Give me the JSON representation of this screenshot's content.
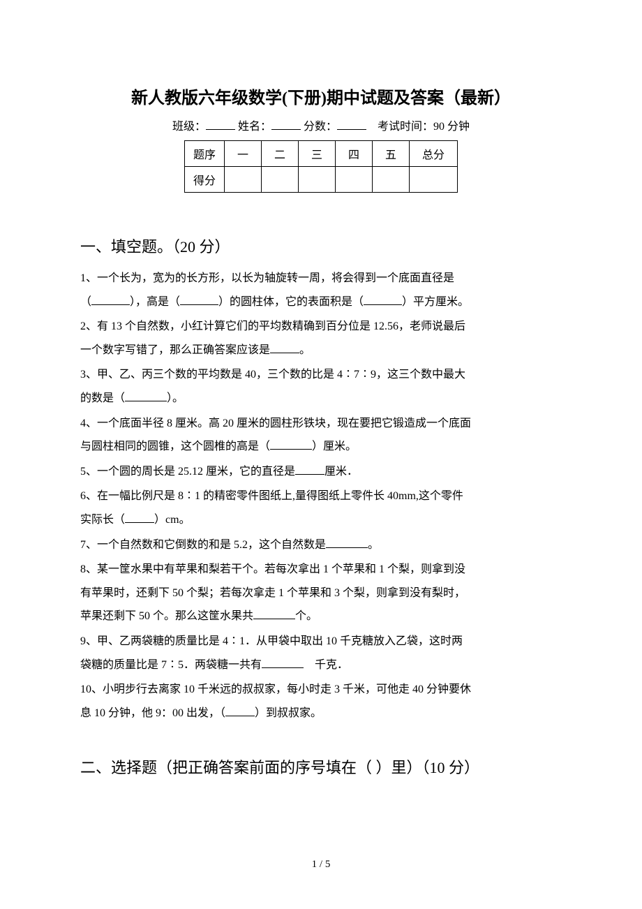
{
  "title": "新人教版六年级数学(下册)期中试题及答案（最新）",
  "meta": {
    "class_label": "班级：",
    "name_label": "姓名：",
    "score_label": "分数：",
    "exam_time_label": "考试时间：90 分钟"
  },
  "score_table": {
    "header": [
      "题序",
      "一",
      "二",
      "三",
      "四",
      "五",
      "总分"
    ],
    "row2_label": "得分"
  },
  "section1": {
    "heading": "一、填空题。（20 分）",
    "q1a": "1、一个长为，宽为的长方形，以长为轴旋转一周，将会得到一个底面直径是",
    "q1b": "（",
    "q1c": "），高是（",
    "q1d": "）的圆柱体，它的表面积是（",
    "q1e": "）平方厘米。",
    "q2a": "2、有 13 个自然数，小红计算它们的平均数精确到百分位是 12.56，老师说最后",
    "q2b": "一个数字写错了，那么正确答案应该是",
    "q2c": "。",
    "q3a": "3、甲、乙、丙三个数的平均数是 40，三个数的比是 4∶7∶9，这三个数中最大",
    "q3b": "的数是（",
    "q3c": "）。",
    "q4a": "4、一个底面半径 8 厘米。高 20 厘米的圆柱形铁块，现在要把它锻造成一个底面",
    "q4b": "与圆柱相同的圆锥，这个圆椎的高是（",
    "q4c": "）厘米。",
    "q5a": "5、一个圆的周长是 25.12 厘米，它的直径是",
    "q5b": "厘米．",
    "q6a": "6、在一幅比例尺是 8∶1 的精密零件图纸上,量得图纸上零件长 40mm,这个零件",
    "q6b": "实际长（",
    "q6c": "）cm。",
    "q7a": "7、一个自然数和它倒数的和是 5.2，这个自然数是",
    "q7b": "。",
    "q8a": "8、某一筐水果中有苹果和梨若干个。若每次拿出 1 个苹果和 1 个梨，则拿到没",
    "q8b": "有苹果时，还剩下 50 个梨；若每次拿走 1 个苹果和 3 个梨，则拿到没有梨时，",
    "q8c": "苹果还剩下 50 个。那么这筐水果共",
    "q8d": "个。",
    "q9a": "9、甲、乙两袋糖的质量比是 4∶1．从甲袋中取出 10 千克糖放入乙袋，这时两",
    "q9b": "袋糖的质量比是 7∶5．两袋糖一共有",
    "q9c": "　千克．",
    "q10a": "10、小明步行去离家 10 千米远的叔叔家，每小时走 3 千米，可他走 40 分钟要休",
    "q10b": "息 10 分钟，他 9：00 出发，（",
    "q10c": "）到叔叔家。"
  },
  "section2": {
    "heading": "二、选择题（把正确答案前面的序号填在（ ）里）（10 分）"
  },
  "footer": "1 / 5"
}
